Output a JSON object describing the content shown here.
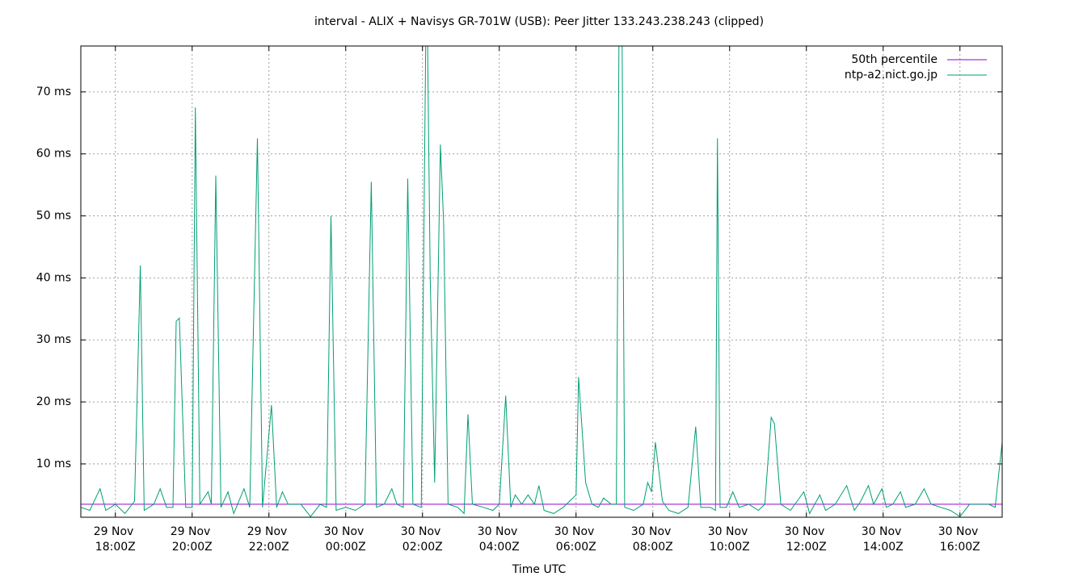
{
  "chart_data": {
    "type": "line",
    "title": "interval - ALIX + Navisys GR-701W (USB): Peer Jitter 133.243.238.243 (clipped)",
    "x_label": "Time UTC",
    "xlim": [
      "29 Nov 17:06Z",
      "30 Nov 17:06Z"
    ],
    "xticks": [
      "29 Nov 18:00Z",
      "29 Nov 20:00Z",
      "29 Nov 22:00Z",
      "30 Nov 00:00Z",
      "30 Nov 02:00Z",
      "30 Nov 04:00Z",
      "30 Nov 06:00Z",
      "30 Nov 08:00Z",
      "30 Nov 10:00Z",
      "30 Nov 12:00Z",
      "30 Nov 14:00Z",
      "30 Nov 16:00Z"
    ],
    "ylim": [
      1.4,
      77.4
    ],
    "yticks": [
      {
        "value": 10,
        "label": "10 ms"
      },
      {
        "value": 20,
        "label": "20 ms"
      },
      {
        "value": 30,
        "label": "30 ms"
      },
      {
        "value": 40,
        "label": "40 ms"
      },
      {
        "value": 50,
        "label": "50 ms"
      },
      {
        "value": 60,
        "label": "60 ms"
      },
      {
        "value": 70,
        "label": "70 ms"
      }
    ],
    "grid": true,
    "legend": "top-right",
    "percentile": {
      "name": "50th percentile",
      "value": 3.5,
      "color": "#9400d3"
    },
    "x": [
      "29 Nov 17:06Z",
      "29 Nov 17:20Z",
      "29 Nov 17:36Z",
      "29 Nov 17:45Z",
      "29 Nov 18:00Z",
      "29 Nov 18:15Z",
      "29 Nov 18:30Z",
      "29 Nov 18:35Z",
      "29 Nov 18:39Z",
      "29 Nov 18:45Z",
      "29 Nov 19:00Z",
      "29 Nov 19:10Z",
      "29 Nov 19:20Z",
      "29 Nov 19:30Z",
      "29 Nov 19:35Z",
      "29 Nov 19:40Z",
      "29 Nov 19:50Z",
      "29 Nov 20:00Z",
      "29 Nov 20:05Z",
      "29 Nov 20:12Z",
      "29 Nov 20:25Z",
      "29 Nov 20:30Z",
      "29 Nov 20:37Z",
      "29 Nov 20:45Z",
      "29 Nov 20:56Z",
      "29 Nov 21:05Z",
      "29 Nov 21:21Z",
      "29 Nov 21:30Z",
      "29 Nov 21:42Z",
      "29 Nov 21:50Z",
      "29 Nov 22:04Z",
      "29 Nov 22:12Z",
      "29 Nov 22:21Z",
      "29 Nov 22:30Z",
      "29 Nov 22:50Z",
      "29 Nov 23:05Z",
      "29 Nov 23:20Z",
      "29 Nov 23:30Z",
      "29 Nov 23:37Z",
      "29 Nov 23:45Z",
      "30 Nov 00:00Z",
      "30 Nov 00:15Z",
      "30 Nov 00:30Z",
      "30 Nov 00:40Z",
      "30 Nov 00:48Z",
      "30 Nov 01:00Z",
      "30 Nov 01:12Z",
      "30 Nov 01:20Z",
      "30 Nov 01:30Z",
      "30 Nov 01:37Z",
      "30 Nov 01:45Z",
      "30 Nov 01:58Z",
      "30 Nov 02:05Z",
      "30 Nov 02:08Z",
      "30 Nov 02:12Z",
      "30 Nov 02:19Z",
      "30 Nov 02:28Z",
      "30 Nov 02:33Z",
      "30 Nov 02:40Z",
      "30 Nov 02:55Z",
      "30 Nov 03:05Z",
      "30 Nov 03:11Z",
      "30 Nov 03:18Z",
      "30 Nov 03:35Z",
      "30 Nov 03:50Z",
      "30 Nov 04:00Z",
      "30 Nov 04:10Z",
      "30 Nov 04:18Z",
      "30 Nov 04:25Z",
      "30 Nov 04:35Z",
      "30 Nov 04:45Z",
      "30 Nov 04:55Z",
      "30 Nov 05:02Z",
      "30 Nov 05:10Z",
      "30 Nov 05:25Z",
      "30 Nov 05:40Z",
      "30 Nov 05:50Z",
      "30 Nov 06:00Z",
      "30 Nov 06:04Z",
      "30 Nov 06:15Z",
      "30 Nov 06:25Z",
      "30 Nov 06:35Z",
      "30 Nov 06:43Z",
      "30 Nov 06:55Z",
      "30 Nov 07:03Z",
      "30 Nov 07:07Z",
      "30 Nov 07:12Z",
      "30 Nov 07:16Z",
      "30 Nov 07:30Z",
      "30 Nov 07:45Z",
      "30 Nov 07:52Z",
      "30 Nov 07:58Z",
      "30 Nov 08:04Z",
      "30 Nov 08:15Z",
      "30 Nov 08:25Z",
      "30 Nov 08:40Z",
      "30 Nov 08:55Z",
      "30 Nov 09:07Z",
      "30 Nov 09:15Z",
      "30 Nov 09:30Z",
      "30 Nov 09:38Z",
      "30 Nov 09:41Z",
      "30 Nov 09:45Z",
      "30 Nov 09:55Z",
      "30 Nov 10:05Z",
      "30 Nov 10:15Z",
      "30 Nov 10:30Z",
      "30 Nov 10:45Z",
      "30 Nov 10:55Z",
      "30 Nov 11:05Z",
      "30 Nov 11:10Z",
      "30 Nov 11:20Z",
      "30 Nov 11:35Z",
      "30 Nov 11:56Z",
      "30 Nov 12:05Z",
      "30 Nov 12:21Z",
      "30 Nov 12:30Z",
      "30 Nov 12:45Z",
      "30 Nov 13:03Z",
      "30 Nov 13:15Z",
      "30 Nov 13:25Z",
      "30 Nov 13:37Z",
      "30 Nov 13:45Z",
      "30 Nov 13:58Z",
      "30 Nov 14:05Z",
      "30 Nov 14:15Z",
      "30 Nov 14:27Z",
      "30 Nov 14:35Z",
      "30 Nov 14:50Z",
      "30 Nov 15:04Z",
      "30 Nov 15:15Z",
      "30 Nov 15:30Z",
      "30 Nov 15:45Z",
      "30 Nov 16:00Z",
      "30 Nov 16:15Z",
      "30 Nov 16:30Z",
      "30 Nov 16:45Z",
      "30 Nov 16:55Z",
      "30 Nov 17:06Z"
    ],
    "series": [
      {
        "name": "ntp-a2.nict.go.jp",
        "color": "#009e73",
        "values": [
          3,
          2.5,
          6,
          2.5,
          3.5,
          2,
          4,
          25,
          42,
          2.5,
          3.5,
          6,
          3,
          3,
          33,
          33.5,
          3,
          3,
          67.5,
          3.5,
          5.5,
          3.5,
          56.5,
          3,
          5.5,
          2,
          6,
          3,
          62.5,
          3,
          19.5,
          3,
          5.5,
          3.5,
          3.5,
          1.5,
          3.5,
          3,
          50,
          2.5,
          3,
          2.5,
          3.5,
          55.5,
          3,
          3.5,
          6,
          3.5,
          3,
          56,
          3.5,
          3,
          77.4,
          77.4,
          40,
          7,
          61.5,
          49,
          3.5,
          3,
          2,
          18,
          3.5,
          3,
          2.5,
          3.5,
          21,
          3,
          5,
          3.5,
          5,
          3.5,
          6.5,
          2.5,
          2,
          3,
          4,
          5,
          24,
          7,
          3.5,
          3,
          4.5,
          3.5,
          3.5,
          77.4,
          77.4,
          3,
          2.5,
          3.5,
          7,
          5.5,
          13.5,
          4,
          2.5,
          2,
          3,
          16,
          3,
          3,
          2.5,
          62.5,
          3,
          3,
          5.5,
          3,
          3.5,
          2.5,
          3.5,
          17.5,
          16.5,
          3.5,
          2.5,
          5.5,
          2,
          5,
          2.5,
          3.5,
          6.5,
          2.5,
          4,
          6.5,
          3.5,
          6,
          3,
          3.5,
          5.5,
          3,
          3.5,
          6,
          3.5,
          3,
          2.5,
          1.5,
          3.5,
          3.5,
          3.5,
          3,
          13.5
        ]
      }
    ]
  }
}
